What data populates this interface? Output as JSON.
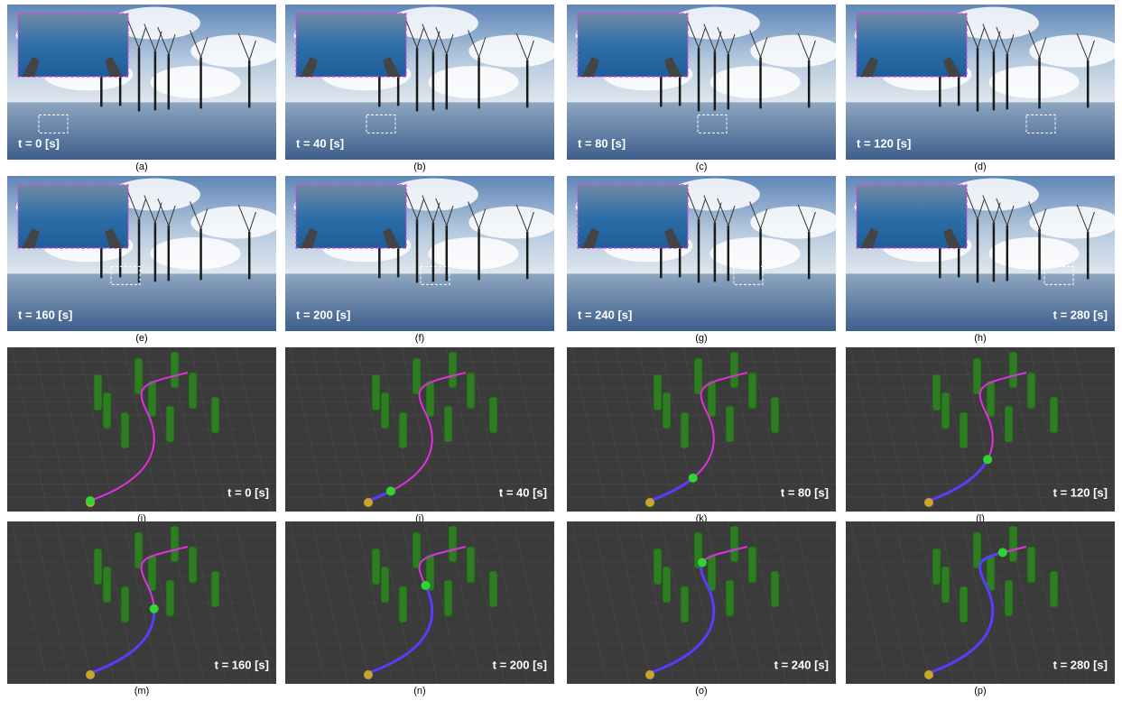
{
  "panels": [
    {
      "label": "(a)",
      "time": "t = 0 [s]"
    },
    {
      "label": "(b)",
      "time": "t = 40 [s]"
    },
    {
      "label": "(c)",
      "time": "t = 80 [s]"
    },
    {
      "label": "(d)",
      "time": "t = 120 [s]"
    },
    {
      "label": "(e)",
      "time": "t = 160 [s]"
    },
    {
      "label": "(f)",
      "time": "t = 200 [s]"
    },
    {
      "label": "(g)",
      "time": "t = 240 [s]"
    },
    {
      "label": "(h)",
      "time": "t = 280 [s]"
    },
    {
      "label": "(i)",
      "time": "t = 0 [s]"
    },
    {
      "label": "(j)",
      "time": "t = 40 [s]"
    },
    {
      "label": "(k)",
      "time": "t = 80 [s]"
    },
    {
      "label": "(l)",
      "time": "t = 120 [s]"
    },
    {
      "label": "(m)",
      "time": "t = 160 [s]"
    },
    {
      "label": "(n)",
      "time": "t = 200 [s]"
    },
    {
      "label": "(o)",
      "time": "t = 240 [s]"
    },
    {
      "label": "(p)",
      "time": "t = 280 [s]"
    }
  ]
}
